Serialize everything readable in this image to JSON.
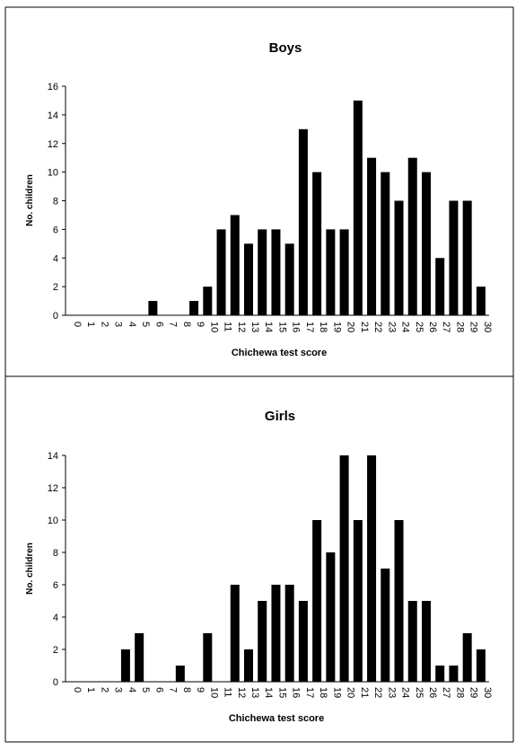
{
  "chart_data": [
    {
      "type": "bar",
      "title": "Boys",
      "xlabel": "Chichewa test score",
      "ylabel": "No. children",
      "ylim": [
        0,
        16
      ],
      "yticks": [
        0,
        2,
        4,
        6,
        8,
        10,
        12,
        14,
        16
      ],
      "categories": [
        "0",
        "1",
        "2",
        "3",
        "4",
        "5",
        "6",
        "7",
        "8",
        "9",
        "10",
        "11",
        "12",
        "13",
        "14",
        "15",
        "16",
        "17",
        "18",
        "19",
        "20",
        "21",
        "22",
        "23",
        "24",
        "25",
        "26",
        "27",
        "28",
        "29",
        "30"
      ],
      "values": [
        0,
        0,
        0,
        0,
        0,
        0,
        1,
        0,
        0,
        1,
        2,
        6,
        7,
        5,
        6,
        6,
        5,
        13,
        10,
        6,
        6,
        15,
        11,
        10,
        8,
        11,
        10,
        4,
        8,
        8,
        2
      ],
      "grid": false,
      "bar_color": "#000000"
    },
    {
      "type": "bar",
      "title": "Girls",
      "xlabel": "Chichewa test score",
      "ylabel": "No. children",
      "ylim": [
        0,
        14
      ],
      "yticks": [
        0,
        2,
        4,
        6,
        8,
        10,
        12,
        14
      ],
      "categories": [
        "0",
        "1",
        "2",
        "3",
        "4",
        "5",
        "6",
        "7",
        "8",
        "9",
        "10",
        "11",
        "12",
        "13",
        "14",
        "15",
        "16",
        "17",
        "18",
        "19",
        "20",
        "21",
        "22",
        "23",
        "24",
        "25",
        "26",
        "27",
        "28",
        "29",
        "30"
      ],
      "values": [
        0,
        0,
        0,
        0,
        2,
        3,
        0,
        0,
        1,
        0,
        3,
        0,
        6,
        2,
        5,
        6,
        6,
        5,
        10,
        8,
        14,
        10,
        14,
        7,
        10,
        5,
        5,
        1,
        1,
        3,
        2
      ],
      "grid": false,
      "bar_color": "#000000"
    }
  ]
}
